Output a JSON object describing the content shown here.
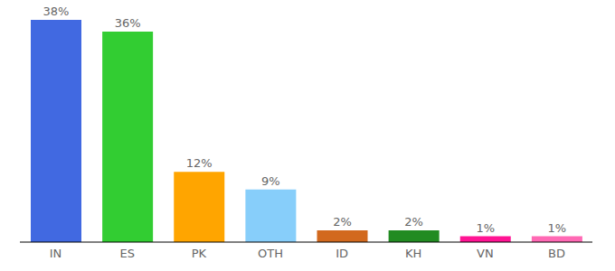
{
  "chart_data": {
    "type": "bar",
    "categories": [
      "IN",
      "ES",
      "PK",
      "OTH",
      "ID",
      "KH",
      "VN",
      "BD"
    ],
    "values": [
      38,
      36,
      12,
      9,
      2,
      2,
      1,
      1
    ],
    "value_labels": [
      "38%",
      "36%",
      "12%",
      "9%",
      "2%",
      "2%",
      "1%",
      "1%"
    ],
    "colors": [
      "#4169e1",
      "#32cd32",
      "#ffa500",
      "#87cefa",
      "#d2691e",
      "#228b22",
      "#ff1493",
      "#ff69b4"
    ],
    "data_labels": true,
    "tick_labels": "x"
  }
}
